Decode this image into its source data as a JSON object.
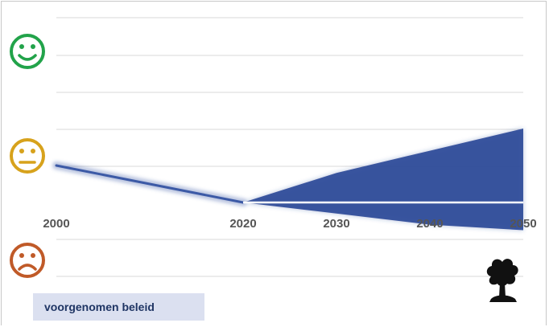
{
  "chart_data": {
    "type": "area",
    "x_ticks": [
      "2000",
      "2020",
      "2030",
      "2040",
      "2050"
    ],
    "x_range": [
      2000,
      2050
    ],
    "y_range": [
      -1.1,
      2.1
    ],
    "past_line": [
      {
        "x": 2000,
        "y": 0.2
      },
      {
        "x": 2020,
        "y": 0.0
      }
    ],
    "projection_band": {
      "upper": [
        {
          "x": 2020,
          "y": 0.0
        },
        {
          "x": 2030,
          "y": 0.16
        },
        {
          "x": 2040,
          "y": 0.28
        },
        {
          "x": 2050,
          "y": 0.4
        }
      ],
      "lower": [
        {
          "x": 2020,
          "y": 0.0
        },
        {
          "x": 2030,
          "y": -0.06
        },
        {
          "x": 2040,
          "y": -0.12
        },
        {
          "x": 2050,
          "y": -0.15
        }
      ]
    },
    "grid": true,
    "legend": {
      "label": "voorgenomen beleid",
      "position": "bottom-left"
    },
    "y_icons": [
      "happy-face",
      "neutral-face",
      "sad-face"
    ],
    "colors": {
      "band": "#2c4a98",
      "line": "#3c5aa6",
      "happy": "#22a34a",
      "neutral": "#d7a21c",
      "sad": "#c05a28",
      "grid": "#d9d9d9",
      "legend_bg": "#dbe0f0"
    },
    "corner_icon": "tree-icon"
  }
}
